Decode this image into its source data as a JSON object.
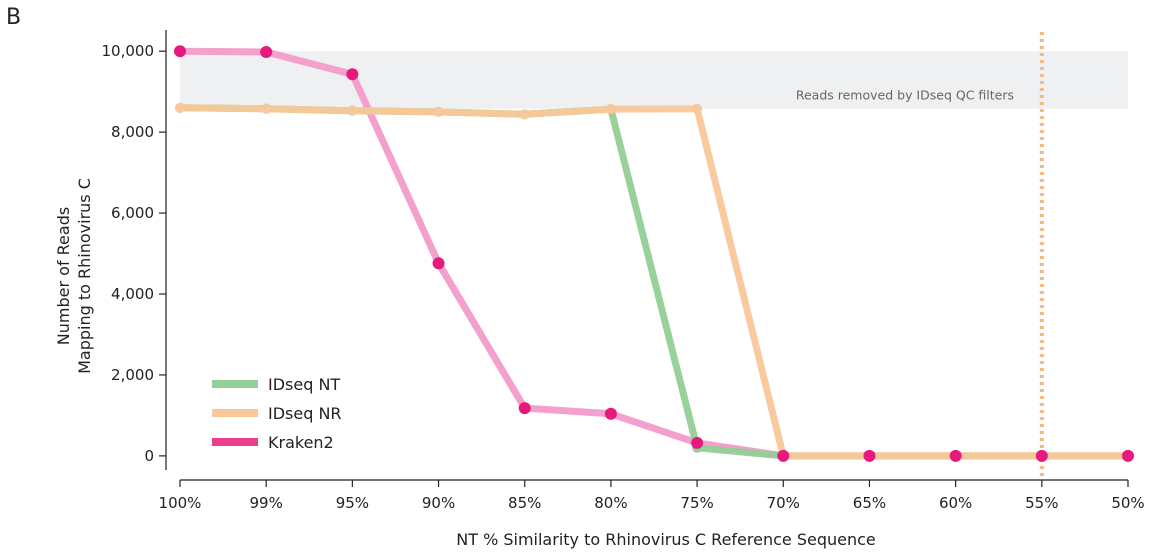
{
  "chart_data": {
    "type": "line",
    "panel_label": "B",
    "xlabel": "NT % Similarity to Rhinovirus C Reference Sequence",
    "ylabel_line1": "Number of Reads",
    "ylabel_line2": "Mapping to Rhinovirus C",
    "categories": [
      "100%",
      "99%",
      "95%",
      "90%",
      "85%",
      "80%",
      "75%",
      "70%",
      "65%",
      "60%",
      "55%",
      "50%"
    ],
    "ylim": [
      -250,
      10400
    ],
    "yticks": [
      0,
      2000,
      4000,
      6000,
      8000,
      10000
    ],
    "ytick_labels": [
      "0",
      "2,000",
      "4,000",
      "6,000",
      "8,000",
      "10,000"
    ],
    "band": {
      "y0": 8580,
      "y1": 10000,
      "label": "Reads removed by IDseq QC filters",
      "color": "#eef0f2"
    },
    "vline": {
      "category_index": 10,
      "color": "#f5b880"
    },
    "series": [
      {
        "name": "IDseq NT",
        "color": "#93cf96",
        "values": [
          8600,
          8580,
          8530,
          8500,
          8440,
          8570,
          200,
          0,
          0,
          0,
          0,
          0
        ]
      },
      {
        "name": "IDseq NR",
        "color": "#f8c89a",
        "values": [
          8600,
          8580,
          8530,
          8500,
          8440,
          8570,
          8580,
          0,
          0,
          0,
          0,
          0
        ]
      },
      {
        "name": "Kraken2",
        "color": "#f29bc9",
        "marker_color": "#e6197e",
        "legend_color": "#e83e8c",
        "values": [
          10000,
          9980,
          9430,
          4760,
          1180,
          1040,
          320,
          0,
          0,
          0,
          0,
          0
        ]
      }
    ],
    "grid": false,
    "legend_position": "bottom-left"
  }
}
